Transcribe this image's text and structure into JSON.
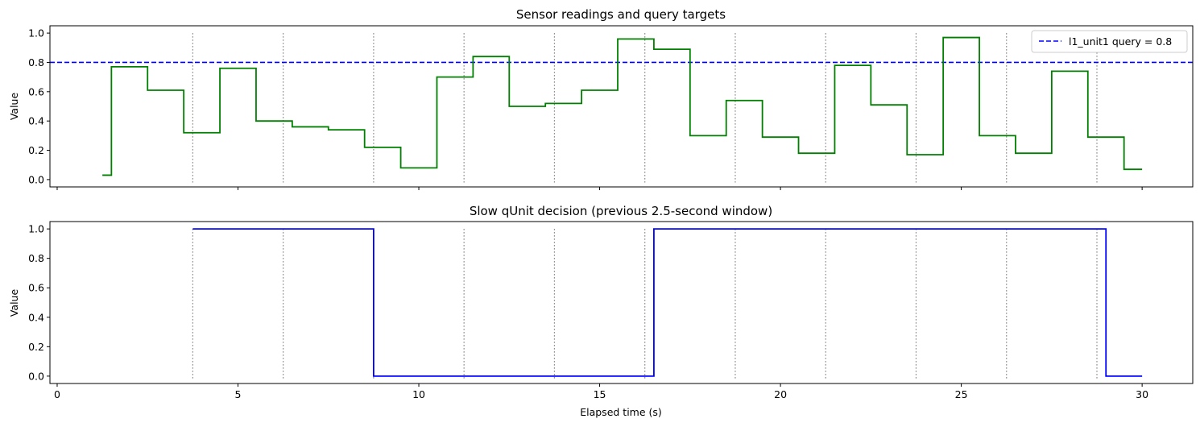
{
  "chart_data": [
    {
      "type": "line",
      "step": "post",
      "title": "Sensor readings and query targets",
      "xlabel": "",
      "ylabel": "Value",
      "xlim": [
        -0.2,
        31.4
      ],
      "ylim": [
        -0.05,
        1.05
      ],
      "xticks": [
        0,
        5,
        10,
        15,
        20,
        25,
        30
      ],
      "xtick_labels_visible": false,
      "yticks": [
        0.0,
        0.2,
        0.4,
        0.6,
        0.8,
        1.0
      ],
      "ytick_labels": [
        "0.0",
        "0.2",
        "0.4",
        "0.6",
        "0.8",
        "1.0"
      ],
      "grid": false,
      "legend": "top-right",
      "series": [
        {
          "name": "",
          "color": "#008000",
          "x": [
            1.25,
            1.5,
            2.5,
            3.5,
            4.5,
            5.5,
            6.5,
            7.5,
            8.5,
            9.5,
            10.5,
            11.5,
            12.5,
            13.5,
            14.5,
            15.5,
            16.5,
            17.5,
            18.5,
            19.5,
            20.5,
            21.5,
            22.5,
            23.5,
            24.5,
            25.5,
            26.5,
            27.5,
            28.5,
            29.5,
            30.0
          ],
          "y": [
            0.03,
            0.77,
            0.61,
            0.32,
            0.76,
            0.4,
            0.36,
            0.34,
            0.22,
            0.08,
            0.7,
            0.84,
            0.5,
            0.52,
            0.61,
            0.96,
            0.89,
            0.3,
            0.54,
            0.29,
            0.18,
            0.78,
            0.51,
            0.17,
            0.97,
            0.3,
            0.18,
            0.74,
            0.29,
            0.07,
            0.07
          ]
        }
      ],
      "hlines": [
        {
          "y": 0.8,
          "label": "l1_unit1 query = 0.8",
          "color": "#0000ff",
          "style": "dashed"
        }
      ],
      "vlines": {
        "x": [
          3.75,
          6.25,
          8.75,
          11.25,
          13.75,
          16.25,
          18.75,
          21.25,
          23.75,
          26.25,
          28.75
        ],
        "color": "#808080",
        "style": "dotted"
      }
    },
    {
      "type": "line",
      "step": "post",
      "title": "Slow qUnit decision (previous 2.5-second window)",
      "xlabel": "Elapsed time (s)",
      "ylabel": "Value",
      "xlim": [
        -0.2,
        31.4
      ],
      "ylim": [
        -0.05,
        1.05
      ],
      "xticks": [
        0,
        5,
        10,
        15,
        20,
        25,
        30
      ],
      "xtick_labels": [
        "0",
        "5",
        "10",
        "15",
        "20",
        "25",
        "30"
      ],
      "yticks": [
        0.0,
        0.2,
        0.4,
        0.6,
        0.8,
        1.0
      ],
      "ytick_labels": [
        "0.0",
        "0.2",
        "0.4",
        "0.6",
        "0.8",
        "1.0"
      ],
      "grid": false,
      "series": [
        {
          "name": "",
          "color": "#0000ff",
          "x": [
            3.75,
            8.75,
            16.5,
            29.0,
            30.0
          ],
          "y": [
            1,
            0,
            1,
            0,
            0
          ]
        }
      ],
      "vlines": {
        "x": [
          3.75,
          6.25,
          8.75,
          11.25,
          13.75,
          16.25,
          18.75,
          21.25,
          23.75,
          26.25,
          28.75
        ],
        "color": "#808080",
        "style": "dotted"
      }
    }
  ]
}
